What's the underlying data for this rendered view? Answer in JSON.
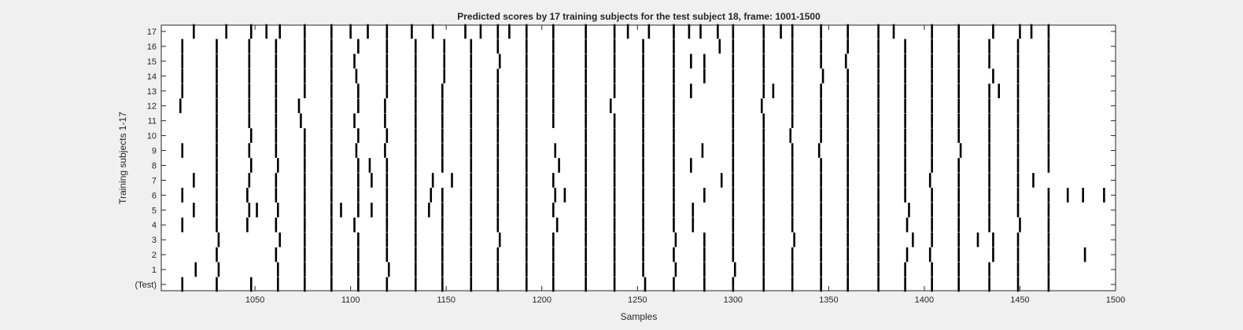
{
  "chart_data": {
    "type": "event-raster",
    "title": "Predicted scores by 17 training subjects for the test subject 18, frame: 1001-1500",
    "xlabel": "Samples",
    "ylabel": "Training subjects 1-17",
    "xlim": [
      1001,
      1500
    ],
    "x_ticks": [
      1050,
      1100,
      1150,
      1200,
      1250,
      1300,
      1350,
      1400,
      1450,
      1500
    ],
    "y_tick_labels": [
      "(Test)",
      "1",
      "2",
      "3",
      "4",
      "5",
      "6",
      "7",
      "8",
      "9",
      "10",
      "11",
      "12",
      "13",
      "14",
      "15",
      "16",
      "17"
    ],
    "grid": false,
    "rows": [
      {
        "label": "(Test)",
        "x": [
          1012,
          1030,
          1048,
          1062,
          1076,
          1090,
          1104,
          1119,
          1134,
          1148,
          1163,
          1177,
          1192,
          1206,
          1223,
          1238,
          1254,
          1269,
          1285,
          1300,
          1316,
          1331,
          1346,
          1360,
          1376,
          1390,
          1404,
          1418,
          1434,
          1449,
          1465
        ]
      },
      {
        "label": "1",
        "x": [
          1019,
          1031,
          1062,
          1076,
          1090,
          1104,
          1120,
          1134,
          1148,
          1163,
          1177,
          1192,
          1206,
          1223,
          1238,
          1253,
          1270,
          1285,
          1301,
          1316,
          1331,
          1346,
          1360,
          1376,
          1390,
          1404,
          1418,
          1434,
          1449,
          1465
        ]
      },
      {
        "label": "2",
        "x": [
          1030,
          1061,
          1076,
          1090,
          1104,
          1119,
          1134,
          1148,
          1163,
          1177,
          1192,
          1206,
          1223,
          1238,
          1253,
          1269,
          1285,
          1300,
          1316,
          1331,
          1346,
          1360,
          1376,
          1391,
          1403,
          1418,
          1436,
          1449,
          1465,
          1484
        ]
      },
      {
        "label": "3",
        "x": [
          1031,
          1063,
          1076,
          1090,
          1104,
          1119,
          1134,
          1148,
          1163,
          1178,
          1192,
          1206,
          1223,
          1238,
          1253,
          1270,
          1285,
          1300,
          1316,
          1332,
          1346,
          1360,
          1376,
          1394,
          1404,
          1418,
          1428,
          1436,
          1449,
          1465
        ]
      },
      {
        "label": "4",
        "x": [
          1012,
          1030,
          1046,
          1061,
          1076,
          1090,
          1102,
          1119,
          1134,
          1148,
          1163,
          1177,
          1192,
          1208,
          1223,
          1238,
          1253,
          1269,
          1279,
          1300,
          1316,
          1331,
          1346,
          1360,
          1376,
          1391,
          1404,
          1418,
          1434,
          1450,
          1465
        ]
      },
      {
        "label": "5",
        "x": [
          1018,
          1030,
          1047,
          1051,
          1062,
          1076,
          1090,
          1095,
          1104,
          1111,
          1119,
          1134,
          1141,
          1148,
          1163,
          1177,
          1192,
          1206,
          1223,
          1238,
          1253,
          1269,
          1279,
          1300,
          1316,
          1331,
          1346,
          1360,
          1376,
          1392,
          1404,
          1418,
          1434,
          1449,
          1465
        ]
      },
      {
        "label": "6",
        "x": [
          1012,
          1030,
          1046,
          1061,
          1076,
          1090,
          1104,
          1119,
          1134,
          1142,
          1148,
          1163,
          1177,
          1192,
          1207,
          1212,
          1223,
          1238,
          1253,
          1269,
          1285,
          1300,
          1316,
          1331,
          1346,
          1360,
          1376,
          1390,
          1404,
          1418,
          1434,
          1449,
          1465,
          1475,
          1483,
          1494
        ]
      },
      {
        "label": "7",
        "x": [
          1018,
          1030,
          1047,
          1061,
          1076,
          1090,
          1104,
          1111,
          1119,
          1134,
          1143,
          1153,
          1163,
          1177,
          1192,
          1206,
          1223,
          1238,
          1253,
          1269,
          1294,
          1300,
          1316,
          1331,
          1346,
          1360,
          1376,
          1390,
          1403,
          1418,
          1434,
          1449,
          1457
        ]
      },
      {
        "label": "8",
        "x": [
          1030,
          1048,
          1062,
          1076,
          1090,
          1104,
          1110,
          1119,
          1134,
          1148,
          1163,
          1177,
          1192,
          1209,
          1223,
          1238,
          1253,
          1269,
          1278,
          1300,
          1316,
          1331,
          1346,
          1360,
          1376,
          1390,
          1404,
          1418,
          1434,
          1449,
          1465
        ]
      },
      {
        "label": "9",
        "x": [
          1012,
          1030,
          1047,
          1061,
          1076,
          1090,
          1103,
          1118,
          1134,
          1148,
          1163,
          1177,
          1192,
          1207,
          1223,
          1238,
          1253,
          1269,
          1284,
          1300,
          1316,
          1331,
          1345,
          1360,
          1376,
          1390,
          1404,
          1419,
          1434,
          1449,
          1465
        ]
      },
      {
        "label": "10",
        "x": [
          1030,
          1048,
          1061,
          1076,
          1090,
          1104,
          1119,
          1134,
          1148,
          1163,
          1177,
          1192,
          1223,
          1238,
          1253,
          1269,
          1300,
          1316,
          1330,
          1346,
          1360,
          1376,
          1390,
          1404,
          1418,
          1434,
          1449,
          1465
        ]
      },
      {
        "label": "11",
        "x": [
          1030,
          1047,
          1061,
          1074,
          1090,
          1102,
          1118,
          1134,
          1148,
          1163,
          1177,
          1192,
          1206,
          1223,
          1238,
          1253,
          1269,
          1300,
          1316,
          1331,
          1346,
          1360,
          1376,
          1390,
          1404,
          1418,
          1434,
          1449,
          1465
        ]
      },
      {
        "label": "12",
        "x": [
          1011,
          1030,
          1047,
          1061,
          1073,
          1090,
          1104,
          1118,
          1134,
          1148,
          1163,
          1177,
          1192,
          1206,
          1223,
          1236,
          1253,
          1269,
          1300,
          1315,
          1331,
          1346,
          1360,
          1376,
          1390,
          1404,
          1418,
          1434,
          1449,
          1465
        ]
      },
      {
        "label": "13",
        "x": [
          1012,
          1030,
          1047,
          1061,
          1076,
          1090,
          1104,
          1119,
          1134,
          1148,
          1163,
          1177,
          1192,
          1206,
          1223,
          1238,
          1253,
          1269,
          1278,
          1300,
          1316,
          1321,
          1331,
          1346,
          1360,
          1376,
          1390,
          1404,
          1418,
          1434,
          1439,
          1449,
          1465
        ]
      },
      {
        "label": "14",
        "x": [
          1012,
          1030,
          1047,
          1061,
          1076,
          1090,
          1103,
          1119,
          1134,
          1149,
          1163,
          1177,
          1192,
          1206,
          1223,
          1238,
          1253,
          1269,
          1285,
          1300,
          1316,
          1331,
          1347,
          1360,
          1376,
          1390,
          1404,
          1418,
          1436,
          1449,
          1465
        ]
      },
      {
        "label": "15",
        "x": [
          1012,
          1030,
          1047,
          1061,
          1076,
          1090,
          1102,
          1119,
          1134,
          1149,
          1163,
          1178,
          1192,
          1206,
          1223,
          1238,
          1253,
          1269,
          1278,
          1285,
          1300,
          1316,
          1331,
          1346,
          1359,
          1376,
          1390,
          1404,
          1418,
          1434,
          1449,
          1465
        ]
      },
      {
        "label": "16",
        "x": [
          1012,
          1030,
          1047,
          1061,
          1076,
          1090,
          1104,
          1119,
          1134,
          1149,
          1163,
          1177,
          1192,
          1206,
          1223,
          1238,
          1253,
          1269,
          1293,
          1300,
          1316,
          1331,
          1346,
          1360,
          1376,
          1390,
          1404,
          1418,
          1434,
          1449,
          1465
        ]
      },
      {
        "label": "17",
        "x": [
          1018,
          1035,
          1048,
          1056,
          1063,
          1076,
          1090,
          1100,
          1109,
          1119,
          1132,
          1143,
          1160,
          1168,
          1177,
          1183,
          1192,
          1206,
          1223,
          1238,
          1245,
          1256,
          1269,
          1277,
          1283,
          1292,
          1300,
          1316,
          1325,
          1331,
          1346,
          1360,
          1376,
          1384,
          1404,
          1418,
          1436,
          1450,
          1456,
          1465
        ]
      }
    ]
  }
}
